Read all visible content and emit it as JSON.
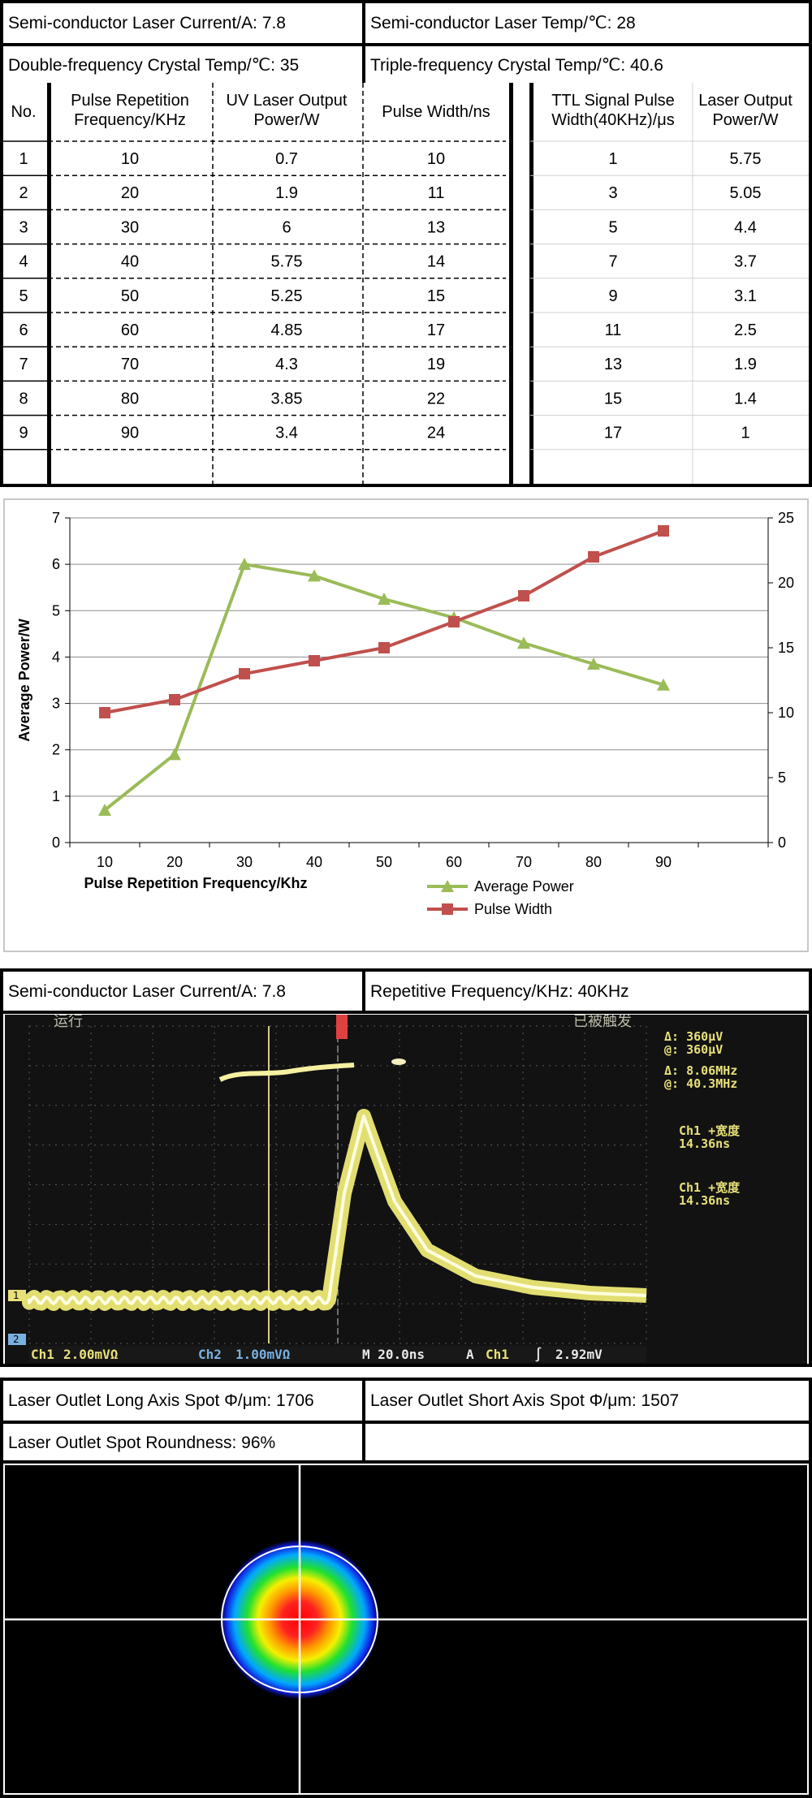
{
  "section1": {
    "params": [
      {
        "text": "Semi-conductor Laser Current/A: 7.8"
      },
      {
        "text": "Semi-conductor Laser Temp/℃: 28"
      },
      {
        "text": "Double-frequency Crystal Temp/℃: 35"
      },
      {
        "text": "Triple-frequency Crystal Temp/℃: 40.6"
      }
    ],
    "table_left": {
      "headers": [
        "No.",
        "Pulse Repetition Frequency/KHz",
        "UV Laser Output Power/W",
        "Pulse Width/ns"
      ],
      "rows": [
        [
          "1",
          "10",
          "0.7",
          "10"
        ],
        [
          "2",
          "20",
          "1.9",
          "11"
        ],
        [
          "3",
          "30",
          "6",
          "13"
        ],
        [
          "4",
          "40",
          "5.75",
          "14"
        ],
        [
          "5",
          "50",
          "5.25",
          "15"
        ],
        [
          "6",
          "60",
          "4.85",
          "17"
        ],
        [
          "7",
          "70",
          "4.3",
          "19"
        ],
        [
          "8",
          "80",
          "3.85",
          "22"
        ],
        [
          "9",
          "90",
          "3.4",
          "24"
        ]
      ]
    },
    "table_right": {
      "headers": [
        "TTL Signal Pulse Width(40KHz)/μs",
        "Laser Output Power/W"
      ],
      "rows": [
        [
          "1",
          "5.75"
        ],
        [
          "3",
          "5.05"
        ],
        [
          "5",
          "4.4"
        ],
        [
          "7",
          "3.7"
        ],
        [
          "9",
          "3.1"
        ],
        [
          "11",
          "2.5"
        ],
        [
          "13",
          "1.9"
        ],
        [
          "15",
          "1.4"
        ],
        [
          "17",
          "1"
        ]
      ]
    }
  },
  "chart_data": {
    "type": "line",
    "title": "",
    "xlabel": "Pulse Repetition Frequency/Khz",
    "ylabel": "Average Power/W",
    "categories": [
      "10",
      "20",
      "30",
      "40",
      "50",
      "60",
      "70",
      "80",
      "90"
    ],
    "y_left_ticks": [
      "0",
      "1",
      "2",
      "3",
      "4",
      "5",
      "6",
      "7"
    ],
    "y_right_ticks": [
      "0",
      "5",
      "10",
      "15",
      "20",
      "25"
    ],
    "ylim_left": [
      0,
      7
    ],
    "ylim_right": [
      0,
      25
    ],
    "grid": true,
    "legend_position": "bottom",
    "series": [
      {
        "name": "Average Power",
        "axis": "left",
        "color": "#9bbb59",
        "marker": "triangle",
        "values": [
          0.7,
          1.9,
          6,
          5.75,
          5.25,
          4.85,
          4.3,
          3.85,
          3.4
        ]
      },
      {
        "name": "Pulse Width",
        "axis": "right",
        "color": "#c0504d",
        "marker": "square",
        "values": [
          10,
          11,
          13,
          14,
          15,
          17,
          19,
          22,
          24
        ]
      }
    ]
  },
  "section2": {
    "params": [
      {
        "text": "Semi-conductor Laser Current/A: 7.8"
      },
      {
        "text": "Repetitive Frequency/KHz: 40KHz"
      }
    ],
    "scope": {
      "top_left": "运行",
      "top_right": "已被触发",
      "readouts": [
        "Δ:   360μV",
        "@:   360μV",
        "Δ:  8.06MHz",
        "@:  40.3MHz",
        "Ch1 +宽度",
        "14.36ns",
        "Ch1 +宽度",
        "14.36ns"
      ],
      "bottom": [
        "Ch1",
        "2.00mVΩ",
        "Ch2",
        "1.00mVΩ",
        "M 20.0ns",
        "A",
        "Ch1",
        "∫",
        "2.92mV"
      ],
      "markers": [
        "1",
        "2"
      ]
    }
  },
  "section3": {
    "params": [
      {
        "text": "Laser Outlet Long Axis Spot Φ/μm: 1706"
      },
      {
        "text": "Laser Outlet Short Axis Spot Φ/μm: 1507"
      },
      {
        "text": "Laser Outlet Spot Roundness: 96%"
      },
      {
        "text": ""
      }
    ]
  }
}
